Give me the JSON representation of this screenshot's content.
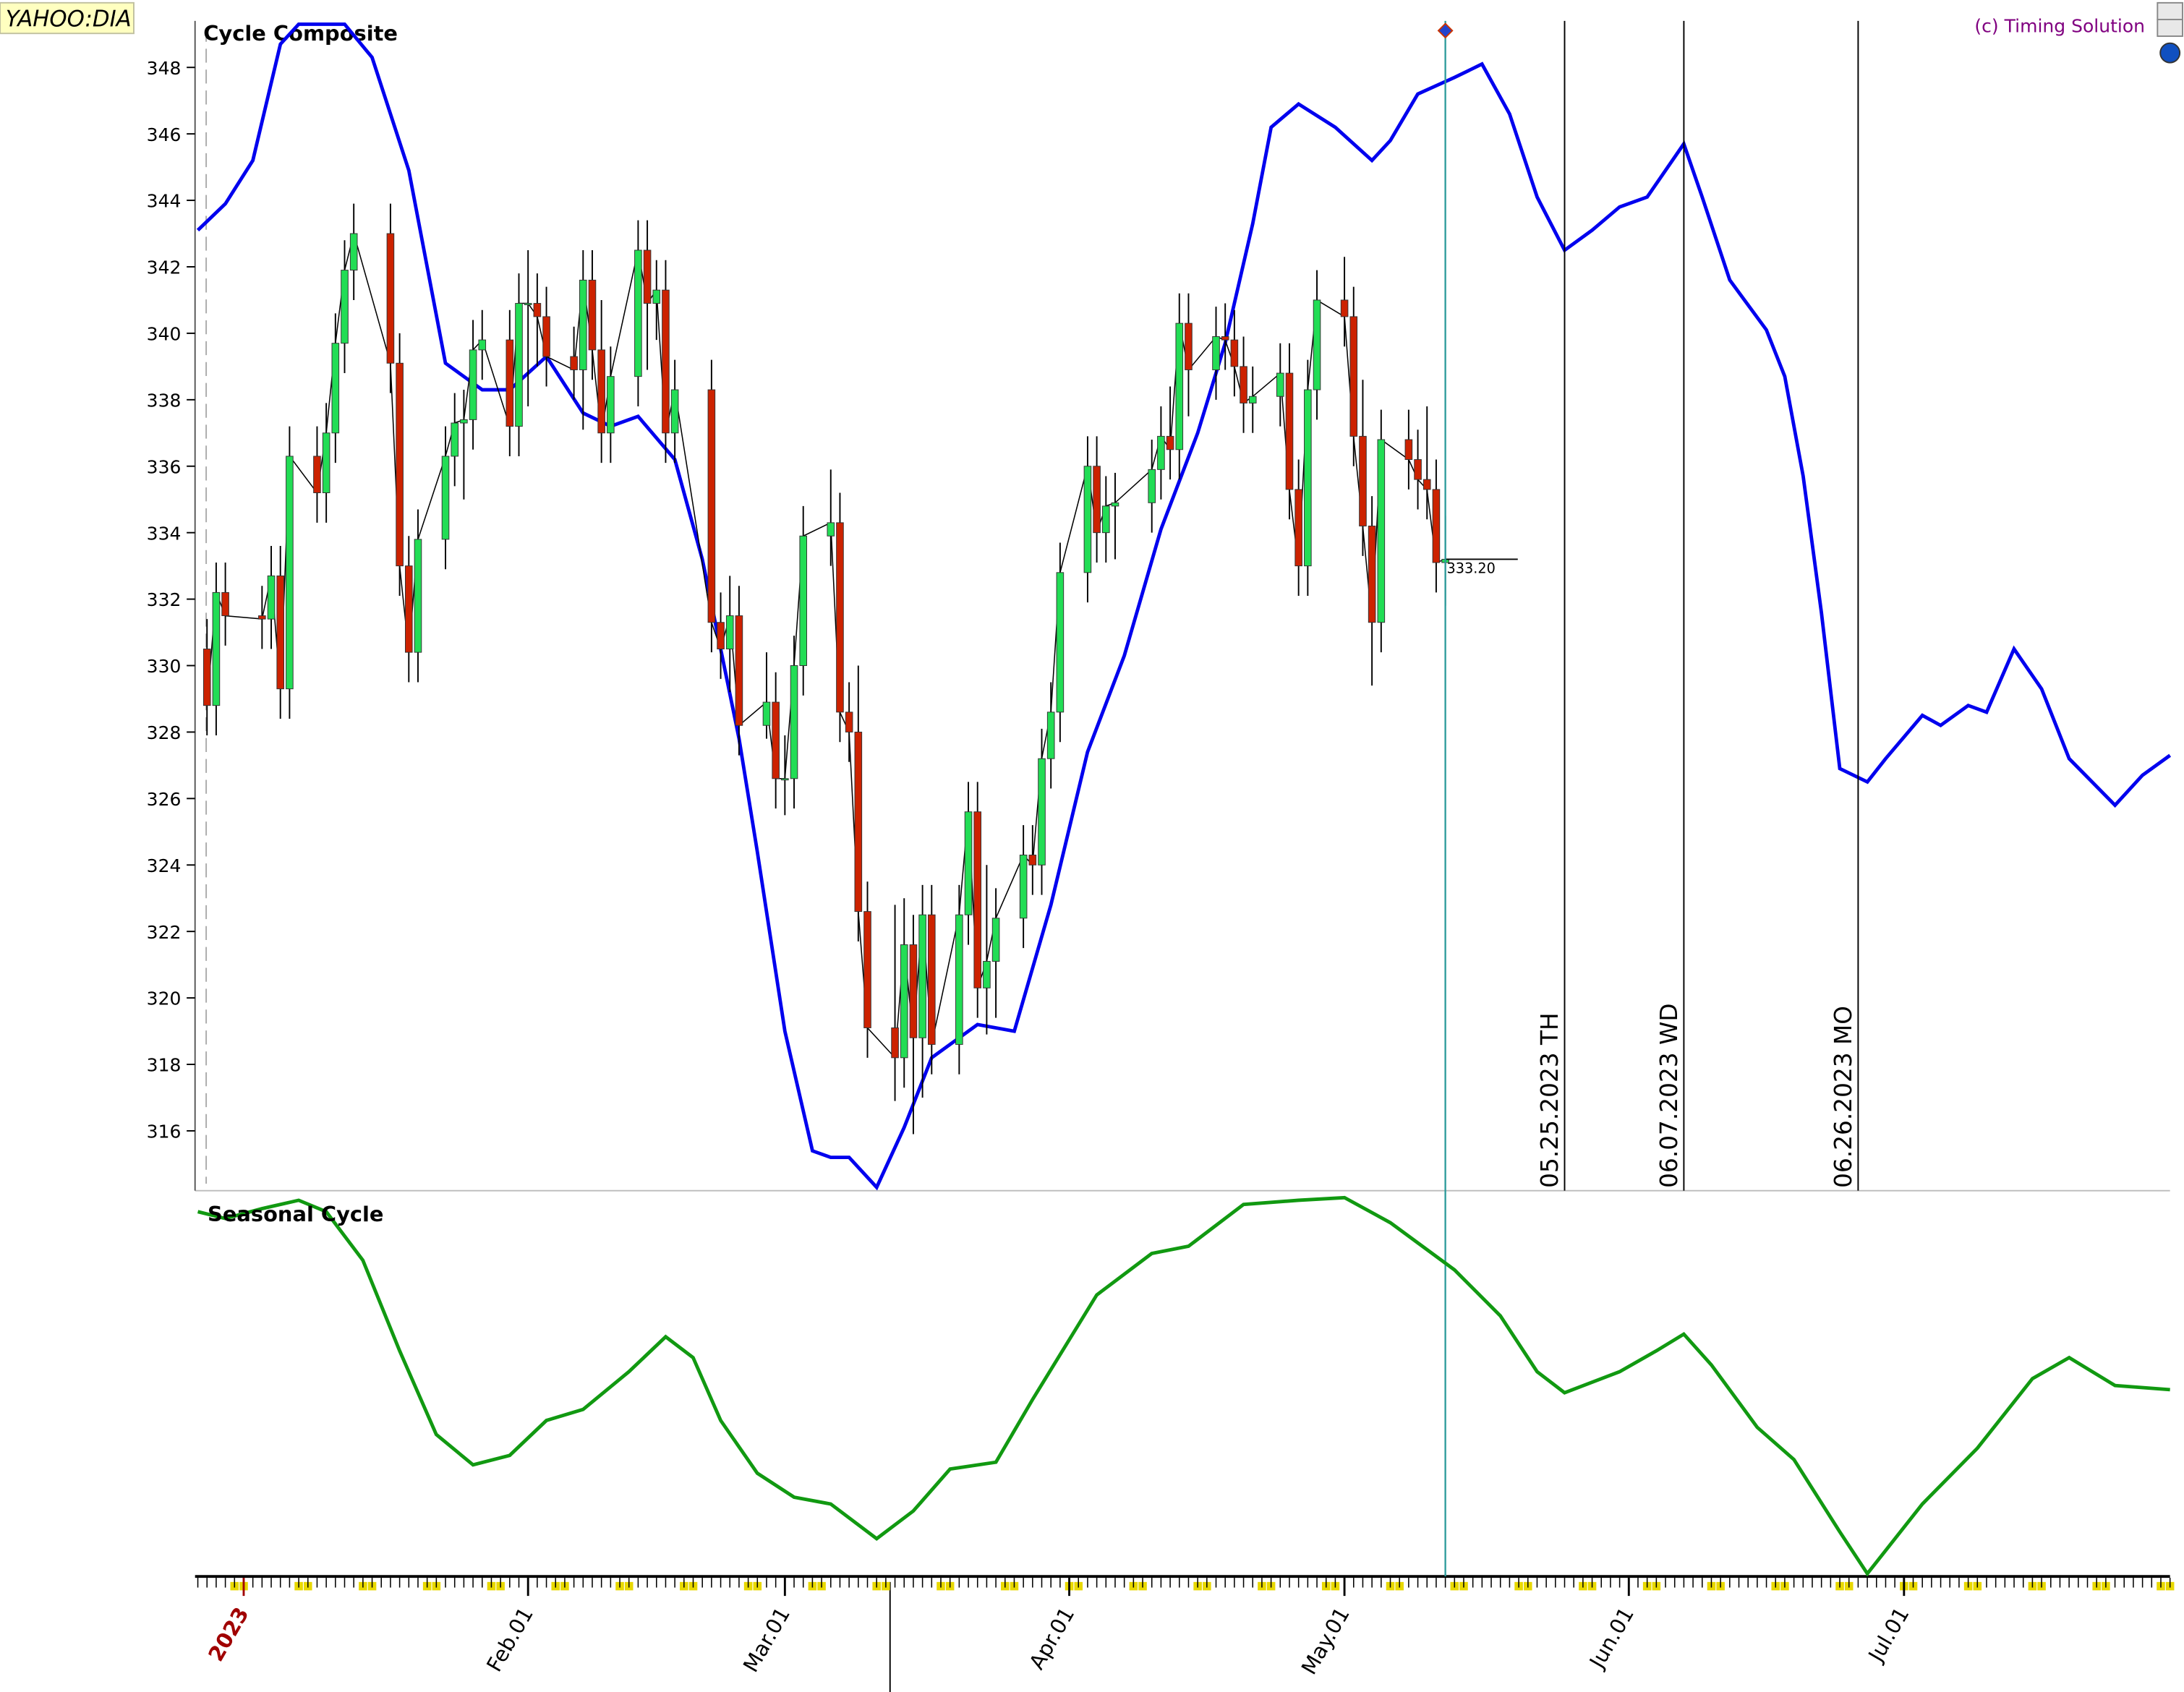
{
  "source": "YAHOO:DIA",
  "credit": "(c) Timing Solution",
  "chart_data": [
    {
      "type": "candlestick",
      "title": "Cycle Composite",
      "x": [
        "2022-12-28",
        "2022-12-29",
        "2022-12-30",
        "2023-01-03",
        "2023-01-04",
        "2023-01-05",
        "2023-01-06",
        "2023-01-09",
        "2023-01-10",
        "2023-01-11",
        "2023-01-12",
        "2023-01-13",
        "2023-01-17",
        "2023-01-18",
        "2023-01-19",
        "2023-01-20",
        "2023-01-23",
        "2023-01-24",
        "2023-01-25",
        "2023-01-26",
        "2023-01-27",
        "2023-01-30",
        "2023-01-31",
        "2023-02-01",
        "2023-02-02",
        "2023-02-03",
        "2023-02-06",
        "2023-02-07",
        "2023-02-08",
        "2023-02-09",
        "2023-02-10",
        "2023-02-13",
        "2023-02-14",
        "2023-02-15",
        "2023-02-16",
        "2023-02-17",
        "2023-02-21",
        "2023-02-22",
        "2023-02-23",
        "2023-02-24",
        "2023-02-27",
        "2023-02-28",
        "2023-03-01",
        "2023-03-02",
        "2023-03-03",
        "2023-03-06",
        "2023-03-07",
        "2023-03-08",
        "2023-03-09",
        "2023-03-10",
        "2023-03-13",
        "2023-03-14",
        "2023-03-15",
        "2023-03-16",
        "2023-03-17",
        "2023-03-20",
        "2023-03-21",
        "2023-03-22",
        "2023-03-23",
        "2023-03-24",
        "2023-03-27",
        "2023-03-28",
        "2023-03-29",
        "2023-03-30",
        "2023-03-31",
        "2023-04-03",
        "2023-04-04",
        "2023-04-05",
        "2023-04-06",
        "2023-04-10",
        "2023-04-11",
        "2023-04-12",
        "2023-04-13",
        "2023-04-14",
        "2023-04-17",
        "2023-04-18",
        "2023-04-19",
        "2023-04-20",
        "2023-04-21",
        "2023-04-24",
        "2023-04-25",
        "2023-04-26",
        "2023-04-27",
        "2023-04-28",
        "2023-05-01",
        "2023-05-02",
        "2023-05-03",
        "2023-05-04",
        "2023-05-05",
        "2023-05-08",
        "2023-05-09",
        "2023-05-10",
        "2023-05-11",
        "2023-05-12"
      ],
      "open": [
        330.5,
        328.8,
        332.2,
        331.5,
        331.4,
        332.7,
        329.3,
        336.3,
        335.2,
        337.0,
        339.7,
        341.9,
        343.0,
        339.1,
        333.0,
        330.4,
        333.8,
        336.3,
        337.3,
        337.4,
        339.5,
        339.8,
        337.2,
        340.9,
        340.9,
        340.5,
        339.3,
        338.9,
        341.6,
        339.5,
        337.0,
        338.7,
        342.5,
        340.9,
        341.3,
        337.0,
        338.3,
        331.3,
        330.5,
        331.5,
        328.2,
        328.9,
        326.6,
        326.6,
        330.0,
        333.9,
        334.3,
        328.6,
        328.0,
        322.6,
        319.1,
        318.2,
        321.6,
        318.8,
        322.5,
        318.6,
        322.5,
        325.6,
        320.3,
        321.1,
        322.4,
        324.3,
        324.0,
        327.2,
        328.6,
        332.8,
        336.0,
        334.0,
        334.8,
        334.9,
        335.9,
        336.9,
        336.5,
        340.3,
        338.9,
        339.9,
        339.8,
        339.0,
        337.9,
        338.1,
        338.8,
        335.3,
        333.0,
        338.3,
        341.0,
        340.5,
        336.9,
        334.2,
        331.3,
        336.8,
        336.2,
        335.6,
        335.3,
        333.1
      ],
      "high": [
        331.4,
        333.1,
        333.1,
        332.4,
        333.6,
        333.6,
        337.2,
        337.2,
        337.9,
        340.6,
        342.8,
        343.9,
        343.9,
        340.0,
        333.9,
        334.7,
        337.2,
        338.2,
        338.3,
        340.4,
        340.7,
        340.7,
        341.8,
        342.5,
        341.8,
        341.4,
        340.2,
        342.5,
        342.5,
        341.0,
        339.6,
        343.4,
        343.4,
        342.2,
        342.2,
        339.2,
        339.2,
        332.2,
        332.7,
        332.4,
        330.4,
        329.8,
        327.9,
        330.9,
        334.8,
        335.9,
        335.2,
        329.5,
        330.0,
        323.5,
        322.8,
        323.0,
        322.5,
        323.4,
        323.4,
        323.4,
        326.5,
        326.5,
        324.0,
        323.3,
        325.2,
        325.2,
        328.1,
        329.5,
        333.7,
        336.9,
        336.9,
        335.7,
        335.8,
        336.8,
        337.8,
        338.4,
        341.2,
        341.2,
        340.8,
        340.9,
        340.7,
        339.9,
        339.0,
        339.7,
        339.7,
        336.2,
        339.2,
        341.9,
        342.3,
        341.4,
        338.6,
        335.1,
        337.7,
        337.7,
        337.1,
        337.8,
        336.2,
        334.5
      ],
      "low": [
        327.9,
        327.9,
        330.6,
        330.5,
        330.5,
        328.4,
        328.4,
        334.3,
        334.3,
        336.1,
        338.8,
        341.0,
        338.2,
        332.1,
        329.5,
        329.5,
        332.9,
        335.4,
        335.0,
        336.5,
        338.6,
        336.3,
        336.3,
        337.8,
        339.0,
        338.4,
        338.0,
        337.1,
        338.6,
        336.1,
        336.1,
        337.8,
        338.9,
        339.8,
        336.1,
        336.1,
        330.4,
        329.6,
        329.2,
        327.3,
        327.8,
        325.7,
        325.5,
        325.7,
        329.1,
        333.0,
        327.7,
        327.1,
        321.7,
        318.2,
        316.9,
        317.3,
        315.9,
        317.0,
        317.7,
        317.7,
        321.6,
        319.4,
        318.9,
        319.4,
        321.5,
        323.1,
        323.1,
        326.3,
        327.7,
        331.9,
        333.1,
        333.1,
        333.2,
        334.0,
        335.0,
        335.6,
        335.6,
        337.5,
        338.0,
        338.9,
        338.1,
        337.0,
        337.0,
        337.2,
        334.4,
        332.1,
        332.1,
        337.4,
        339.6,
        336.0,
        333.3,
        329.4,
        330.4,
        335.3,
        334.7,
        334.4,
        332.2,
        331.8
      ],
      "close": [
        328.8,
        332.2,
        331.5,
        331.4,
        332.7,
        329.3,
        336.3,
        335.2,
        337.0,
        339.7,
        341.9,
        343.0,
        339.1,
        333.0,
        330.4,
        333.8,
        336.3,
        337.3,
        337.4,
        339.5,
        339.8,
        337.2,
        340.9,
        340.9,
        340.5,
        339.3,
        338.9,
        341.6,
        339.5,
        337.0,
        338.7,
        342.5,
        340.9,
        341.3,
        337.0,
        338.3,
        331.3,
        330.5,
        331.5,
        328.2,
        328.9,
        326.6,
        326.6,
        330.0,
        333.9,
        334.3,
        328.6,
        328.0,
        322.6,
        319.1,
        318.2,
        321.6,
        318.8,
        322.5,
        318.6,
        322.5,
        325.6,
        320.3,
        321.1,
        322.4,
        324.3,
        324.0,
        327.2,
        328.6,
        332.8,
        336.0,
        334.0,
        334.8,
        334.9,
        335.9,
        336.9,
        336.5,
        340.3,
        338.9,
        339.9,
        339.8,
        339.0,
        337.9,
        338.1,
        338.8,
        335.3,
        333.0,
        338.3,
        341.0,
        340.5,
        336.9,
        334.2,
        331.3,
        336.8,
        336.2,
        335.6,
        335.3,
        333.1,
        333.2
      ],
      "last_close_label": "333.20",
      "up_color": "#22dd55",
      "down_color": "#cc2200",
      "line": {
        "color": "#0000ee",
        "x": [
          "2022-12-27",
          "2022-12-30",
          "2023-01-02",
          "2023-01-05",
          "2023-01-07",
          "2023-01-12",
          "2023-01-15",
          "2023-01-19",
          "2023-01-23",
          "2023-01-27",
          "2023-01-30",
          "2023-02-03",
          "2023-02-07",
          "2023-02-10",
          "2023-02-13",
          "2023-02-17",
          "2023-02-20",
          "2023-02-24",
          "2023-02-26",
          "2023-03-01",
          "2023-03-04",
          "2023-03-06",
          "2023-03-08",
          "2023-03-11",
          "2023-03-14",
          "2023-03-17",
          "2023-03-22",
          "2023-03-26",
          "2023-03-30",
          "2023-04-03",
          "2023-04-07",
          "2023-04-11",
          "2023-04-15",
          "2023-04-18",
          "2023-04-21",
          "2023-04-23",
          "2023-04-26",
          "2023-04-30",
          "2023-05-04",
          "2023-05-06",
          "2023-05-09",
          "2023-05-13",
          "2023-05-16",
          "2023-05-19",
          "2023-05-22",
          "2023-05-25",
          "2023-05-28",
          "2023-05-31",
          "2023-06-03",
          "2023-06-07",
          "2023-06-09",
          "2023-06-12",
          "2023-06-16",
          "2023-06-18",
          "2023-06-20",
          "2023-06-22",
          "2023-06-24",
          "2023-06-27",
          "2023-06-29",
          "2023-07-03",
          "2023-07-05",
          "2023-07-08",
          "2023-07-10",
          "2023-07-13",
          "2023-07-16",
          "2023-07-19",
          "2023-07-24",
          "2023-07-27",
          "2023-07-30"
        ],
        "values": [
          343.1,
          343.9,
          345.2,
          348.7,
          349.3,
          349.3,
          348.3,
          344.9,
          339.1,
          338.3,
          338.3,
          339.3,
          337.6,
          337.2,
          337.5,
          336.2,
          333.2,
          327.8,
          324.4,
          319.0,
          315.4,
          315.2,
          315.2,
          314.3,
          316.1,
          318.2,
          319.2,
          319.0,
          322.8,
          327.4,
          330.3,
          334.1,
          337.0,
          339.7,
          343.3,
          346.2,
          346.9,
          346.2,
          345.2,
          345.8,
          347.2,
          347.7,
          348.1,
          346.6,
          344.1,
          342.5,
          343.1,
          343.8,
          344.1,
          345.7,
          344.1,
          341.6,
          340.1,
          338.7,
          335.7,
          331.6,
          326.9,
          326.5,
          327.2,
          328.5,
          328.2,
          328.8,
          328.6,
          330.5,
          329.3,
          327.2,
          325.8,
          326.7,
          327.3
        ]
      },
      "events": [
        {
          "x": "2023-05-25",
          "label": "05.25.2023 TH"
        },
        {
          "x": "2023-06-07",
          "label": "06.07.2023 WD"
        },
        {
          "x": "2023-06-26",
          "label": "06.26.2023 MO"
        }
      ],
      "xlim": [
        "2022-12-27",
        "2023-07-30"
      ],
      "ylim": [
        314.2,
        349.4
      ],
      "yticks": [
        316,
        318,
        320,
        322,
        324,
        326,
        328,
        330,
        332,
        334,
        336,
        338,
        340,
        342,
        344,
        346,
        348
      ]
    },
    {
      "type": "line",
      "title": "Seasonal Cycle",
      "color": "#119911",
      "x": [
        "2022-12-27",
        "2022-12-30",
        "2023-01-03",
        "2023-01-07",
        "2023-01-10",
        "2023-01-14",
        "2023-01-18",
        "2023-01-22",
        "2023-01-26",
        "2023-01-30",
        "2023-02-03",
        "2023-02-07",
        "2023-02-12",
        "2023-02-16",
        "2023-02-19",
        "2023-02-22",
        "2023-02-26",
        "2023-03-02",
        "2023-03-06",
        "2023-03-11",
        "2023-03-15",
        "2023-03-19",
        "2023-03-24",
        "2023-03-28",
        "2023-04-04",
        "2023-04-10",
        "2023-04-14",
        "2023-04-20",
        "2023-04-26",
        "2023-05-01",
        "2023-05-06",
        "2023-05-13",
        "2023-05-18",
        "2023-05-22",
        "2023-05-25",
        "2023-05-31",
        "2023-06-04",
        "2023-06-07",
        "2023-06-10",
        "2023-06-15",
        "2023-06-19",
        "2023-06-24",
        "2023-06-27",
        "2023-07-03",
        "2023-07-09",
        "2023-07-15",
        "2023-07-19",
        "2023-07-24",
        "2023-07-30"
      ],
      "values": [
        95.2,
        93.4,
        96,
        98.2,
        95.2,
        82.4,
        58.6,
        36.6,
        28.6,
        31.1,
        40.3,
        43.2,
        53.1,
        62.3,
        56.8,
        40.3,
        26.4,
        20.1,
        18.3,
        9.2,
        16.5,
        27.5,
        29.3,
        45.8,
        73.3,
        84.2,
        86.1,
        97.1,
        98.2,
        98.9,
        92.3,
        79.9,
        67.8,
        53.1,
        47.6,
        53.1,
        58.6,
        63.0,
        54.9,
        38.5,
        30.0,
        11,
        0,
        18.3,
        33,
        51.3,
        56.8,
        49.5,
        48.4
      ],
      "xlim": [
        "2022-12-27",
        "2023-07-30"
      ],
      "ylim": [
        0,
        100
      ],
      "xticks": [
        {
          "value": "2023-01-01",
          "label": "2023"
        },
        {
          "value": "2023-02-01",
          "label": "Feb.01"
        },
        {
          "value": "2023-03-01",
          "label": "Mar.01"
        },
        {
          "value": "2023-04-01",
          "label": "Apr.01"
        },
        {
          "value": "2023-05-01",
          "label": "May.01"
        },
        {
          "value": "2023-06-01",
          "label": "Jun.01"
        },
        {
          "value": "2023-07-01",
          "label": "Jul.01"
        }
      ]
    }
  ]
}
